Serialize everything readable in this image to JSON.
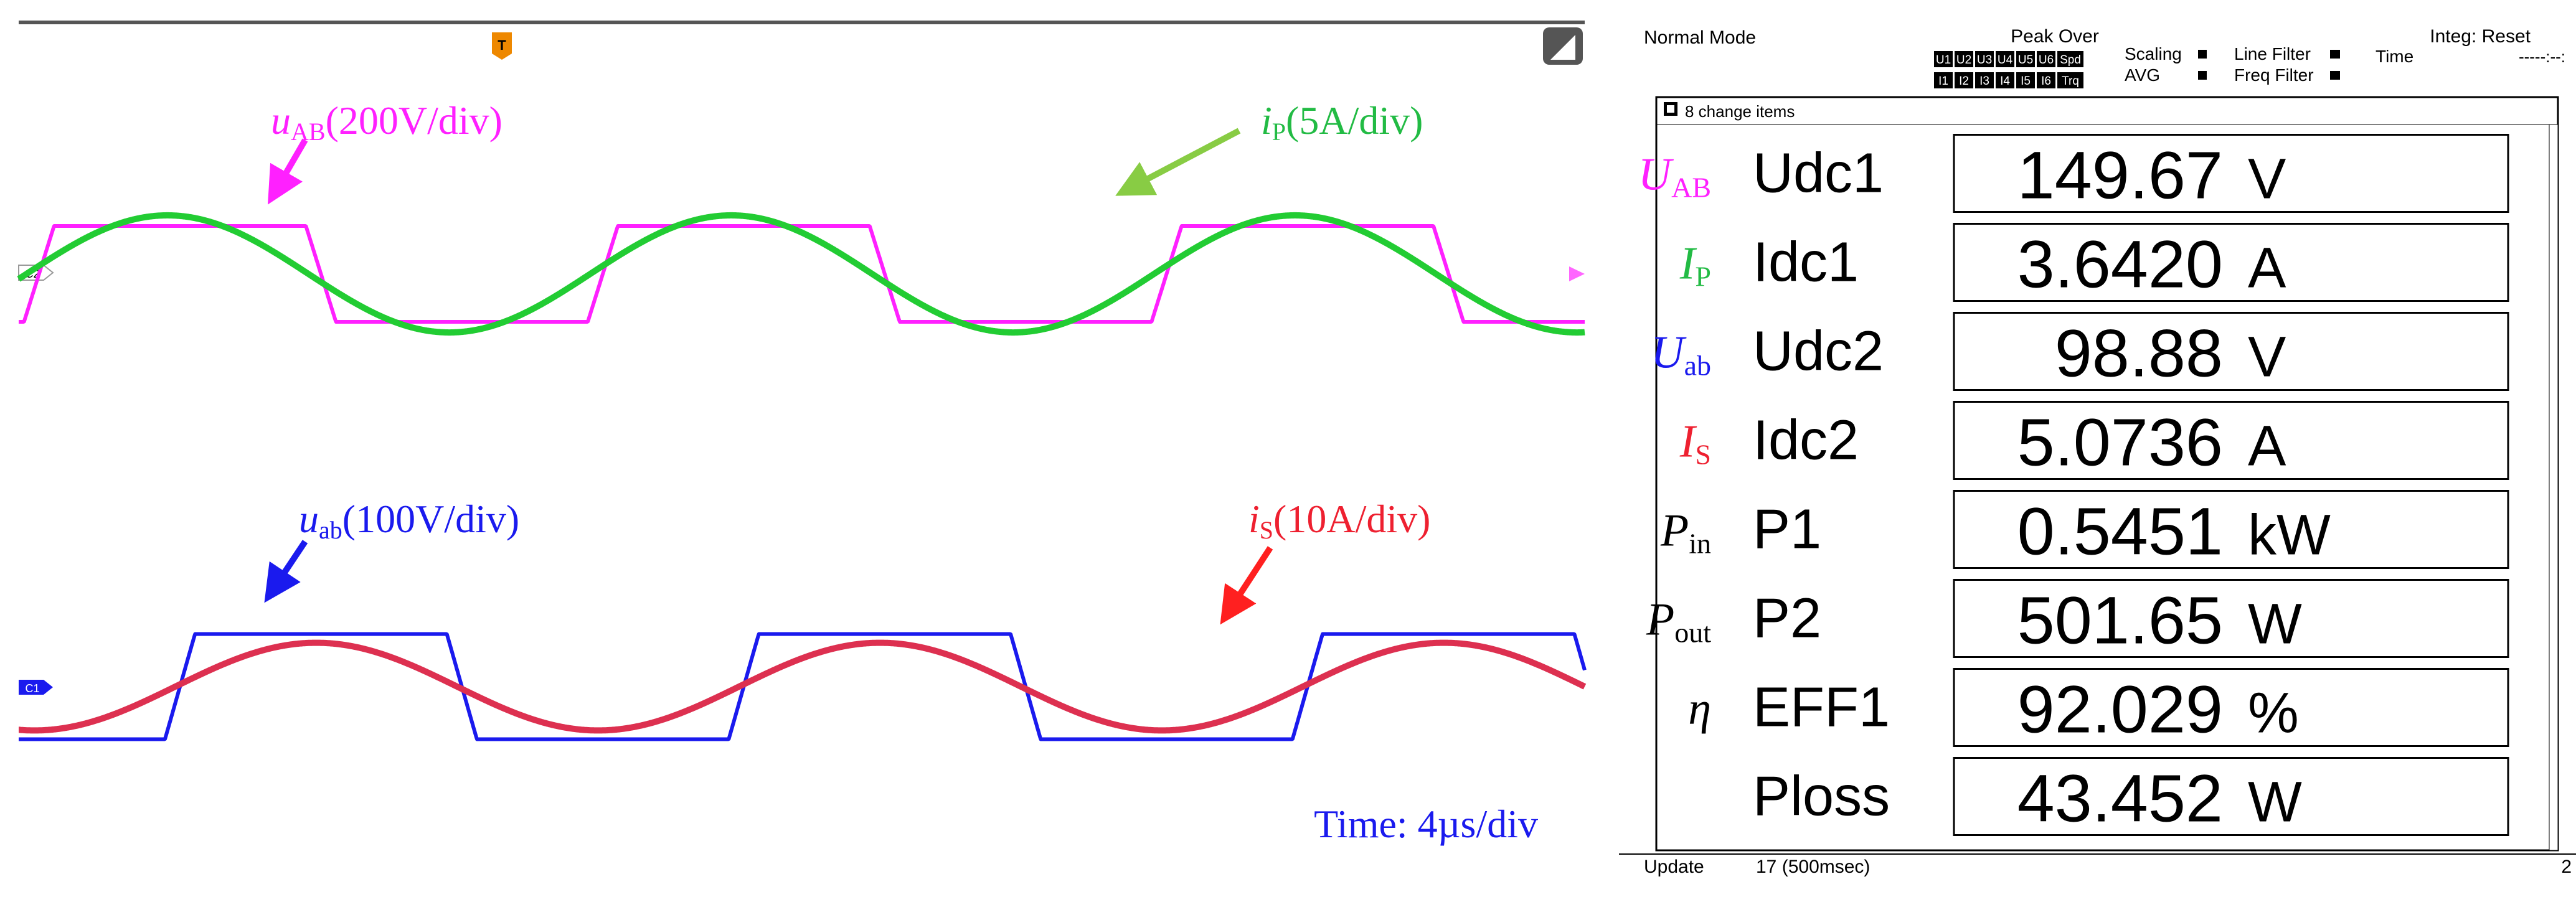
{
  "scope": {
    "trigger_marker": "T",
    "ch2_marker": "C2",
    "ch1_marker": "C1",
    "annotations": {
      "uAB": {
        "sym": "u",
        "sub": "AB",
        "scale": "(200V/div)",
        "color": "#ff20ff"
      },
      "iP": {
        "sym": "i",
        "sub": "P",
        "scale": "(5A/div)",
        "color": "#22bb44"
      },
      "uab": {
        "sym": "u",
        "sub": "ab",
        "scale": "(100V/div)",
        "color": "#1a1aee"
      },
      "iS": {
        "sym": "i",
        "sub": "S",
        "scale": "(10A/div)",
        "color": "#ee2030"
      }
    },
    "time_label": "Time: 4µs/div"
  },
  "chart_data": {
    "type": "line",
    "x_unit": "div",
    "xlim": [
      0,
      10
    ],
    "grid": false,
    "series": [
      {
        "name": "uAB",
        "color": "#ff20ff",
        "shape": "square",
        "period_div": 3.6,
        "phase_div": 0.13,
        "amplitude_div": 0.9
      },
      {
        "name": "iP",
        "color": "#22cc33",
        "shape": "sine",
        "period_div": 3.6,
        "phase_div": 0.05,
        "amplitude_div": 1.1
      },
      {
        "name": "uab",
        "color": "#1a1aee",
        "shape": "square",
        "period_div": 3.6,
        "phase_div": 1.03,
        "amplitude_div": 1.2
      },
      {
        "name": "iS",
        "color": "#dd3050",
        "shape": "sine",
        "period_div": 3.6,
        "phase_div": 1.0,
        "amplitude_div": 1.0
      }
    ]
  },
  "meter": {
    "mode": "Normal Mode",
    "peak_over": "Peak Over",
    "peak_row1": [
      "U1",
      "U2",
      "U3",
      "U4",
      "U5",
      "U6",
      "Spd"
    ],
    "peak_row2": [
      "I1",
      "I2",
      "I3",
      "I4",
      "I5",
      "I6",
      "Trq"
    ],
    "scaling": "Scaling",
    "avg": "AVG",
    "line_filter": "Line Filter",
    "freq_filter": "Freq Filter",
    "integ": "Integ: Reset",
    "time": "Time",
    "time_value": "-----:--:",
    "change_items": "8 change items",
    "rows": [
      {
        "sym": "U",
        "sub": "AB",
        "color": "#ff20ff",
        "item": "Udc1",
        "value": "149.67",
        "unit": "V"
      },
      {
        "sym": "I",
        "sub": "P",
        "color": "#22bb44",
        "item": "Idc1",
        "value": "3.6420",
        "unit": "A"
      },
      {
        "sym": "U",
        "sub": "ab",
        "color": "#1a1aee",
        "item": "Udc2",
        "value": "98.88",
        "unit": "V"
      },
      {
        "sym": "I",
        "sub": "S",
        "color": "#ee2030",
        "item": "Idc2",
        "value": "5.0736",
        "unit": "A"
      },
      {
        "sym": "P",
        "sub": "in",
        "color": "#000000",
        "item": "P1",
        "value": "0.5451",
        "unit": "kW"
      },
      {
        "sym": "P",
        "sub": "out",
        "color": "#000000",
        "item": "P2",
        "value": "501.65",
        "unit": "W"
      },
      {
        "sym": "η",
        "sub": "",
        "color": "#000000",
        "item": "EFF1",
        "value": "92.029",
        "unit": "%"
      },
      {
        "sym": "",
        "sub": "",
        "color": "#000000",
        "item": "Ploss",
        "value": "43.452",
        "unit": "W"
      }
    ],
    "update_label": "Update",
    "update_value": "17 (500msec)",
    "page_num": "2"
  }
}
